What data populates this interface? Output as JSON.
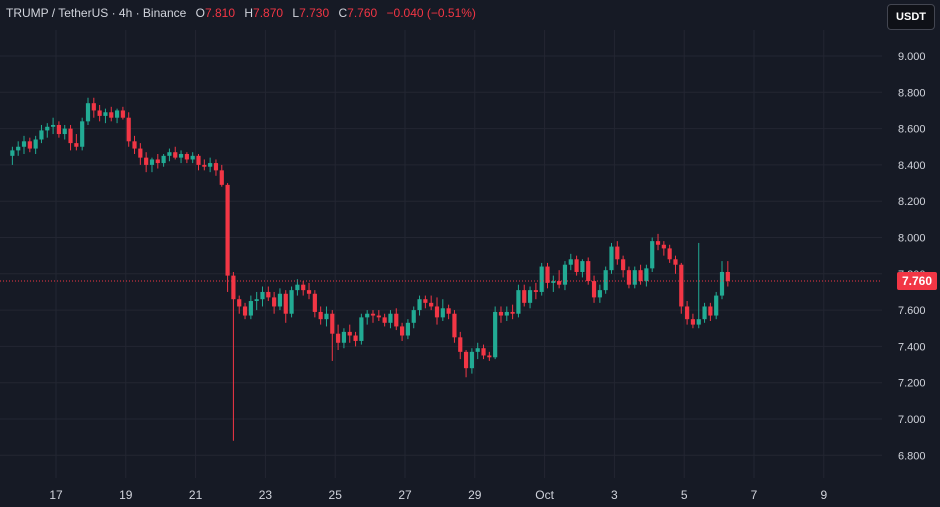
{
  "header": {
    "symbol": "TRUMP / TetherUS · 4h · Binance",
    "open_key": "O",
    "open": "7.810",
    "high_key": "H",
    "high": "7.870",
    "low_key": "L",
    "low": "7.730",
    "close_key": "C",
    "close": "7.760",
    "change": "−0.040 (−0.51%)"
  },
  "currency_button": "USDT",
  "last_price_label": "7.760",
  "colors": {
    "up": "#22ab94",
    "down": "#f23645",
    "background": "#161a25",
    "grid": "#232632",
    "text": "#d1d4dc"
  },
  "chart_data": {
    "type": "candlestick",
    "xlabel": "",
    "ylabel": "",
    "x_axis_labels": [
      "17",
      "19",
      "21",
      "23",
      "25",
      "27",
      "29",
      "Oct",
      "3",
      "5",
      "7",
      "9"
    ],
    "y_axis_labels": [
      "9.000",
      "8.800",
      "8.600",
      "8.400",
      "8.200",
      "8.000",
      "7.800",
      "7.600",
      "7.400",
      "7.200",
      "7.000",
      "6.800"
    ],
    "ylim": [
      6.75,
      9.08
    ],
    "last_price": 7.76,
    "grid": true,
    "candles_per_day": 6,
    "first_day_offset": -8,
    "candles": [
      [
        8.45,
        8.5,
        8.4,
        8.48
      ],
      [
        8.48,
        8.53,
        8.45,
        8.5
      ],
      [
        8.5,
        8.56,
        8.46,
        8.53
      ],
      [
        8.53,
        8.55,
        8.47,
        8.49
      ],
      [
        8.49,
        8.56,
        8.46,
        8.54
      ],
      [
        8.54,
        8.62,
        8.52,
        8.59
      ],
      [
        8.59,
        8.63,
        8.55,
        8.61
      ],
      [
        8.61,
        8.66,
        8.57,
        8.62
      ],
      [
        8.62,
        8.64,
        8.55,
        8.57
      ],
      [
        8.57,
        8.62,
        8.54,
        8.6
      ],
      [
        8.6,
        8.62,
        8.48,
        8.52
      ],
      [
        8.52,
        8.57,
        8.48,
        8.5
      ],
      [
        8.5,
        8.66,
        8.48,
        8.64
      ],
      [
        8.64,
        8.77,
        8.62,
        8.74
      ],
      [
        8.74,
        8.77,
        8.66,
        8.7
      ],
      [
        8.7,
        8.73,
        8.64,
        8.67
      ],
      [
        8.67,
        8.71,
        8.63,
        8.69
      ],
      [
        8.69,
        8.72,
        8.64,
        8.66
      ],
      [
        8.66,
        8.71,
        8.63,
        8.7
      ],
      [
        8.7,
        8.72,
        8.65,
        8.66
      ],
      [
        8.66,
        8.69,
        8.5,
        8.53
      ],
      [
        8.53,
        8.56,
        8.46,
        8.49
      ],
      [
        8.49,
        8.52,
        8.4,
        8.44
      ],
      [
        8.44,
        8.47,
        8.36,
        8.4
      ],
      [
        8.4,
        8.44,
        8.36,
        8.43
      ],
      [
        8.43,
        8.46,
        8.38,
        8.41
      ],
      [
        8.41,
        8.46,
        8.39,
        8.45
      ],
      [
        8.45,
        8.49,
        8.42,
        8.47
      ],
      [
        8.47,
        8.5,
        8.43,
        8.44
      ],
      [
        8.44,
        8.48,
        8.41,
        8.46
      ],
      [
        8.46,
        8.47,
        8.41,
        8.43
      ],
      [
        8.43,
        8.47,
        8.41,
        8.45
      ],
      [
        8.45,
        8.46,
        8.37,
        8.4
      ],
      [
        8.4,
        8.43,
        8.37,
        8.39
      ],
      [
        8.39,
        8.44,
        8.36,
        8.41
      ],
      [
        8.41,
        8.43,
        8.34,
        8.37
      ],
      [
        8.37,
        8.4,
        8.28,
        8.29
      ],
      [
        8.29,
        8.3,
        7.7,
        7.79
      ],
      [
        7.79,
        7.81,
        6.88,
        7.66
      ],
      [
        7.66,
        7.68,
        7.58,
        7.62
      ],
      [
        7.62,
        7.64,
        7.55,
        7.57
      ],
      [
        7.57,
        7.68,
        7.55,
        7.65
      ],
      [
        7.65,
        7.7,
        7.6,
        7.66
      ],
      [
        7.66,
        7.73,
        7.62,
        7.7
      ],
      [
        7.7,
        7.73,
        7.65,
        7.67
      ],
      [
        7.67,
        7.7,
        7.58,
        7.62
      ],
      [
        7.62,
        7.72,
        7.6,
        7.69
      ],
      [
        7.69,
        7.71,
        7.53,
        7.58
      ],
      [
        7.58,
        7.73,
        7.56,
        7.71
      ],
      [
        7.71,
        7.77,
        7.68,
        7.74
      ],
      [
        7.74,
        7.76,
        7.68,
        7.71
      ],
      [
        7.71,
        7.75,
        7.66,
        7.69
      ],
      [
        7.69,
        7.71,
        7.56,
        7.59
      ],
      [
        7.59,
        7.62,
        7.52,
        7.55
      ],
      [
        7.55,
        7.62,
        7.51,
        7.58
      ],
      [
        7.58,
        7.6,
        7.32,
        7.47
      ],
      [
        7.47,
        7.52,
        7.38,
        7.42
      ],
      [
        7.42,
        7.5,
        7.39,
        7.48
      ],
      [
        7.48,
        7.52,
        7.42,
        7.46
      ],
      [
        7.46,
        7.48,
        7.4,
        7.43
      ],
      [
        7.43,
        7.58,
        7.41,
        7.56
      ],
      [
        7.56,
        7.6,
        7.52,
        7.58
      ],
      [
        7.58,
        7.6,
        7.53,
        7.57
      ],
      [
        7.57,
        7.6,
        7.54,
        7.56
      ],
      [
        7.56,
        7.58,
        7.51,
        7.53
      ],
      [
        7.53,
        7.6,
        7.5,
        7.58
      ],
      [
        7.58,
        7.61,
        7.49,
        7.51
      ],
      [
        7.51,
        7.53,
        7.43,
        7.46
      ],
      [
        7.46,
        7.55,
        7.44,
        7.53
      ],
      [
        7.53,
        7.62,
        7.5,
        7.6
      ],
      [
        7.6,
        7.68,
        7.57,
        7.66
      ],
      [
        7.66,
        7.68,
        7.61,
        7.64
      ],
      [
        7.64,
        7.68,
        7.6,
        7.62
      ],
      [
        7.62,
        7.67,
        7.52,
        7.56
      ],
      [
        7.56,
        7.66,
        7.54,
        7.61
      ],
      [
        7.61,
        7.63,
        7.55,
        7.58
      ],
      [
        7.58,
        7.6,
        7.42,
        7.45
      ],
      [
        7.45,
        7.48,
        7.33,
        7.37
      ],
      [
        7.37,
        7.38,
        7.23,
        7.28
      ],
      [
        7.28,
        7.39,
        7.25,
        7.37
      ],
      [
        7.37,
        7.42,
        7.33,
        7.39
      ],
      [
        7.39,
        7.41,
        7.33,
        7.35
      ],
      [
        7.35,
        7.37,
        7.32,
        7.34
      ],
      [
        7.34,
        7.62,
        7.33,
        7.59
      ],
      [
        7.59,
        7.62,
        7.53,
        7.57
      ],
      [
        7.57,
        7.62,
        7.54,
        7.59
      ],
      [
        7.59,
        7.63,
        7.55,
        7.58
      ],
      [
        7.58,
        7.74,
        7.56,
        7.71
      ],
      [
        7.71,
        7.74,
        7.62,
        7.64
      ],
      [
        7.64,
        7.73,
        7.61,
        7.71
      ],
      [
        7.71,
        7.75,
        7.66,
        7.7
      ],
      [
        7.7,
        7.86,
        7.68,
        7.84
      ],
      [
        7.84,
        7.86,
        7.72,
        7.75
      ],
      [
        7.75,
        7.79,
        7.7,
        7.76
      ],
      [
        7.76,
        7.82,
        7.72,
        7.74
      ],
      [
        7.74,
        7.87,
        7.71,
        7.85
      ],
      [
        7.85,
        7.91,
        7.82,
        7.88
      ],
      [
        7.88,
        7.9,
        7.79,
        7.81
      ],
      [
        7.81,
        7.88,
        7.78,
        7.87
      ],
      [
        7.87,
        7.89,
        7.74,
        7.76
      ],
      [
        7.76,
        7.79,
        7.64,
        7.67
      ],
      [
        7.67,
        7.74,
        7.64,
        7.71
      ],
      [
        7.71,
        7.84,
        7.69,
        7.82
      ],
      [
        7.82,
        7.97,
        7.8,
        7.95
      ],
      [
        7.95,
        7.98,
        7.85,
        7.88
      ],
      [
        7.88,
        7.9,
        7.78,
        7.82
      ],
      [
        7.82,
        7.84,
        7.72,
        7.74
      ],
      [
        7.74,
        7.84,
        7.72,
        7.82
      ],
      [
        7.82,
        7.85,
        7.74,
        7.76
      ],
      [
        7.76,
        7.85,
        7.73,
        7.83
      ],
      [
        7.83,
        8.0,
        7.81,
        7.98
      ],
      [
        7.98,
        8.02,
        7.93,
        7.96
      ],
      [
        7.96,
        7.98,
        7.9,
        7.94
      ],
      [
        7.94,
        7.96,
        7.86,
        7.88
      ],
      [
        7.88,
        7.9,
        7.8,
        7.85
      ],
      [
        7.85,
        7.86,
        7.58,
        7.62
      ],
      [
        7.62,
        7.65,
        7.52,
        7.55
      ],
      [
        7.55,
        7.58,
        7.5,
        7.52
      ],
      [
        7.52,
        7.97,
        7.5,
        7.55
      ],
      [
        7.55,
        7.64,
        7.53,
        7.62
      ],
      [
        7.62,
        7.64,
        7.54,
        7.57
      ],
      [
        7.57,
        7.7,
        7.55,
        7.68
      ],
      [
        7.68,
        7.87,
        7.66,
        7.81
      ],
      [
        7.81,
        7.87,
        7.73,
        7.76
      ]
    ]
  }
}
